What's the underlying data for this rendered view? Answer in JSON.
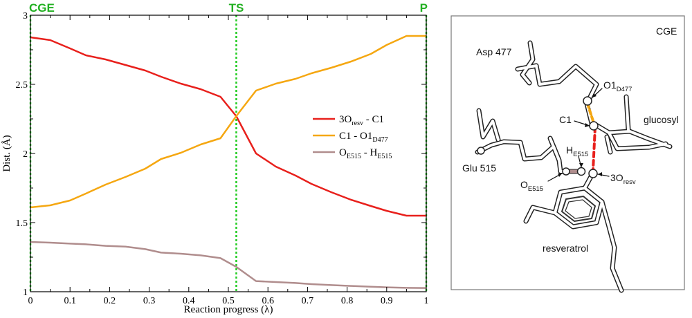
{
  "chart_data": {
    "type": "line",
    "xlabel": "Reaction progress (λ)",
    "ylabel": "Dist. (Å)",
    "xlim": [
      0,
      1
    ],
    "ylim": [
      1,
      3
    ],
    "x_ticks": [
      "0",
      "0.1",
      "0.2",
      "0.3",
      "0.4",
      "0.5",
      "0.6",
      "0.7",
      "0.8",
      "0.9",
      "1"
    ],
    "y_ticks": [
      "1",
      "1.5",
      "2",
      "2.5",
      "3"
    ],
    "grid": false,
    "legend_position": "right",
    "stage_markers": [
      {
        "label": "CGE",
        "x": 0
      },
      {
        "label": "TS",
        "x": 0.52
      },
      {
        "label": "P",
        "x": 1
      }
    ],
    "series": [
      {
        "name": "3O_resv - C1",
        "legend": {
          "main": "3O",
          "sub": "resv",
          "rest": " - C1"
        },
        "color": "#e8201c",
        "x": [
          0,
          0.05,
          0.1,
          0.14,
          0.19,
          0.24,
          0.29,
          0.33,
          0.38,
          0.43,
          0.48,
          0.52,
          0.57,
          0.62,
          0.67,
          0.71,
          0.76,
          0.81,
          0.86,
          0.9,
          0.95,
          1
        ],
        "y": [
          2.84,
          2.82,
          2.76,
          2.71,
          2.68,
          2.64,
          2.6,
          2.555,
          2.505,
          2.465,
          2.41,
          2.27,
          2.0,
          1.905,
          1.84,
          1.78,
          1.72,
          1.665,
          1.62,
          1.585,
          1.55,
          1.55
        ]
      },
      {
        "name": "C1 - O1_D477",
        "legend": {
          "main": "C1 - O1",
          "sub": "D477",
          "rest": ""
        },
        "color": "#f5a711",
        "x": [
          0,
          0.05,
          0.1,
          0.14,
          0.19,
          0.24,
          0.29,
          0.33,
          0.38,
          0.43,
          0.48,
          0.52,
          0.57,
          0.62,
          0.67,
          0.71,
          0.76,
          0.81,
          0.86,
          0.9,
          0.95,
          1
        ],
        "y": [
          1.61,
          1.625,
          1.66,
          1.71,
          1.775,
          1.83,
          1.89,
          1.96,
          2.005,
          2.065,
          2.11,
          2.27,
          2.455,
          2.505,
          2.54,
          2.58,
          2.62,
          2.665,
          2.72,
          2.785,
          2.85,
          2.85
        ]
      },
      {
        "name": "O_E515 - H_E515",
        "legend": {
          "main": "O",
          "sub": "E515",
          "rest": " - H",
          "sub2": "E515"
        },
        "color": "#b08d8d",
        "x": [
          0,
          0.05,
          0.1,
          0.14,
          0.19,
          0.24,
          0.29,
          0.33,
          0.38,
          0.43,
          0.48,
          0.52,
          0.57,
          0.62,
          0.67,
          0.71,
          0.76,
          0.81,
          0.86,
          0.9,
          0.95,
          1
        ],
        "y": [
          1.36,
          1.355,
          1.348,
          1.343,
          1.332,
          1.326,
          1.308,
          1.283,
          1.275,
          1.263,
          1.243,
          1.18,
          1.077,
          1.07,
          1.063,
          1.055,
          1.048,
          1.042,
          1.036,
          1.032,
          1.028,
          1.027
        ]
      }
    ]
  },
  "molecule_panel": {
    "title": "CGE",
    "labels": {
      "asp": "Asp 477",
      "glu": "Glu 515",
      "glucosyl": "glucosyl",
      "resveratrol": "resveratrol",
      "c1": "C1",
      "o1_main": "O1",
      "o1_sub": "D477",
      "h_main": "H",
      "h_sub": "E515",
      "o_main": "O",
      "o_sub": "E515",
      "o3_main": "3O",
      "o3_sub": "resv"
    }
  }
}
